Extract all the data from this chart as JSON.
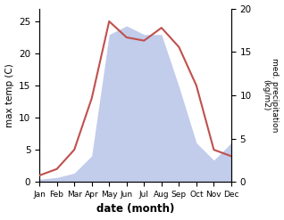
{
  "months": [
    "Jan",
    "Feb",
    "Mar",
    "Apr",
    "May",
    "Jun",
    "Jul",
    "Aug",
    "Sep",
    "Oct",
    "Nov",
    "Dec"
  ],
  "month_x": [
    1,
    2,
    3,
    4,
    5,
    6,
    7,
    8,
    9,
    10,
    11,
    12
  ],
  "temperature": [
    1,
    2,
    5,
    13,
    25,
    22.5,
    22,
    24,
    21,
    15,
    5,
    4
  ],
  "precipitation": [
    0.3,
    0.5,
    1.0,
    3.0,
    17,
    18,
    17,
    17,
    11,
    4.5,
    2.5,
    4.5
  ],
  "temp_color": "#c0504d",
  "precip_fill_color": "#b8c4e8",
  "ylabel_left": "max temp (C)",
  "ylabel_right": "med. precipitation\n(kg/m2)",
  "xlabel": "date (month)",
  "ylim_left": [
    0,
    27
  ],
  "ylim_right": [
    0,
    20
  ],
  "yticks_left": [
    0,
    5,
    10,
    15,
    20,
    25
  ],
  "yticks_right": [
    0,
    5,
    10,
    15,
    20
  ],
  "background_color": "#ffffff"
}
